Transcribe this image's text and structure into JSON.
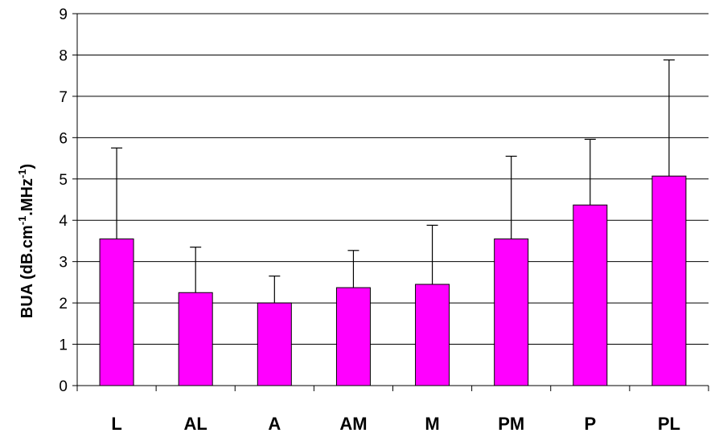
{
  "chart_data": {
    "type": "bar",
    "title": "",
    "xlabel": "",
    "ylabel": "BUA (dB.cm-1.MHz-1)",
    "ylabel_parts": {
      "a": "BUA (dB.cm",
      "sup1": "-1",
      "b": ".MHz",
      "sup2": "-1",
      "c": ")"
    },
    "categories": [
      "L",
      "AL",
      "A",
      "AM",
      "M",
      "PM",
      "P",
      "PL"
    ],
    "values": [
      3.55,
      2.25,
      2.0,
      2.37,
      2.45,
      3.55,
      4.37,
      5.07
    ],
    "error_upper": [
      5.75,
      3.35,
      2.65,
      3.27,
      3.88,
      5.55,
      5.96,
      7.88
    ],
    "ylim": [
      0,
      9
    ],
    "yticks": [
      "0",
      "1",
      "2",
      "3",
      "4",
      "5",
      "6",
      "7",
      "8",
      "9"
    ],
    "grid": true,
    "legend": "none",
    "colors": {
      "bar": "#FF00FF",
      "edge": "#000000",
      "grid": "#000000"
    }
  }
}
